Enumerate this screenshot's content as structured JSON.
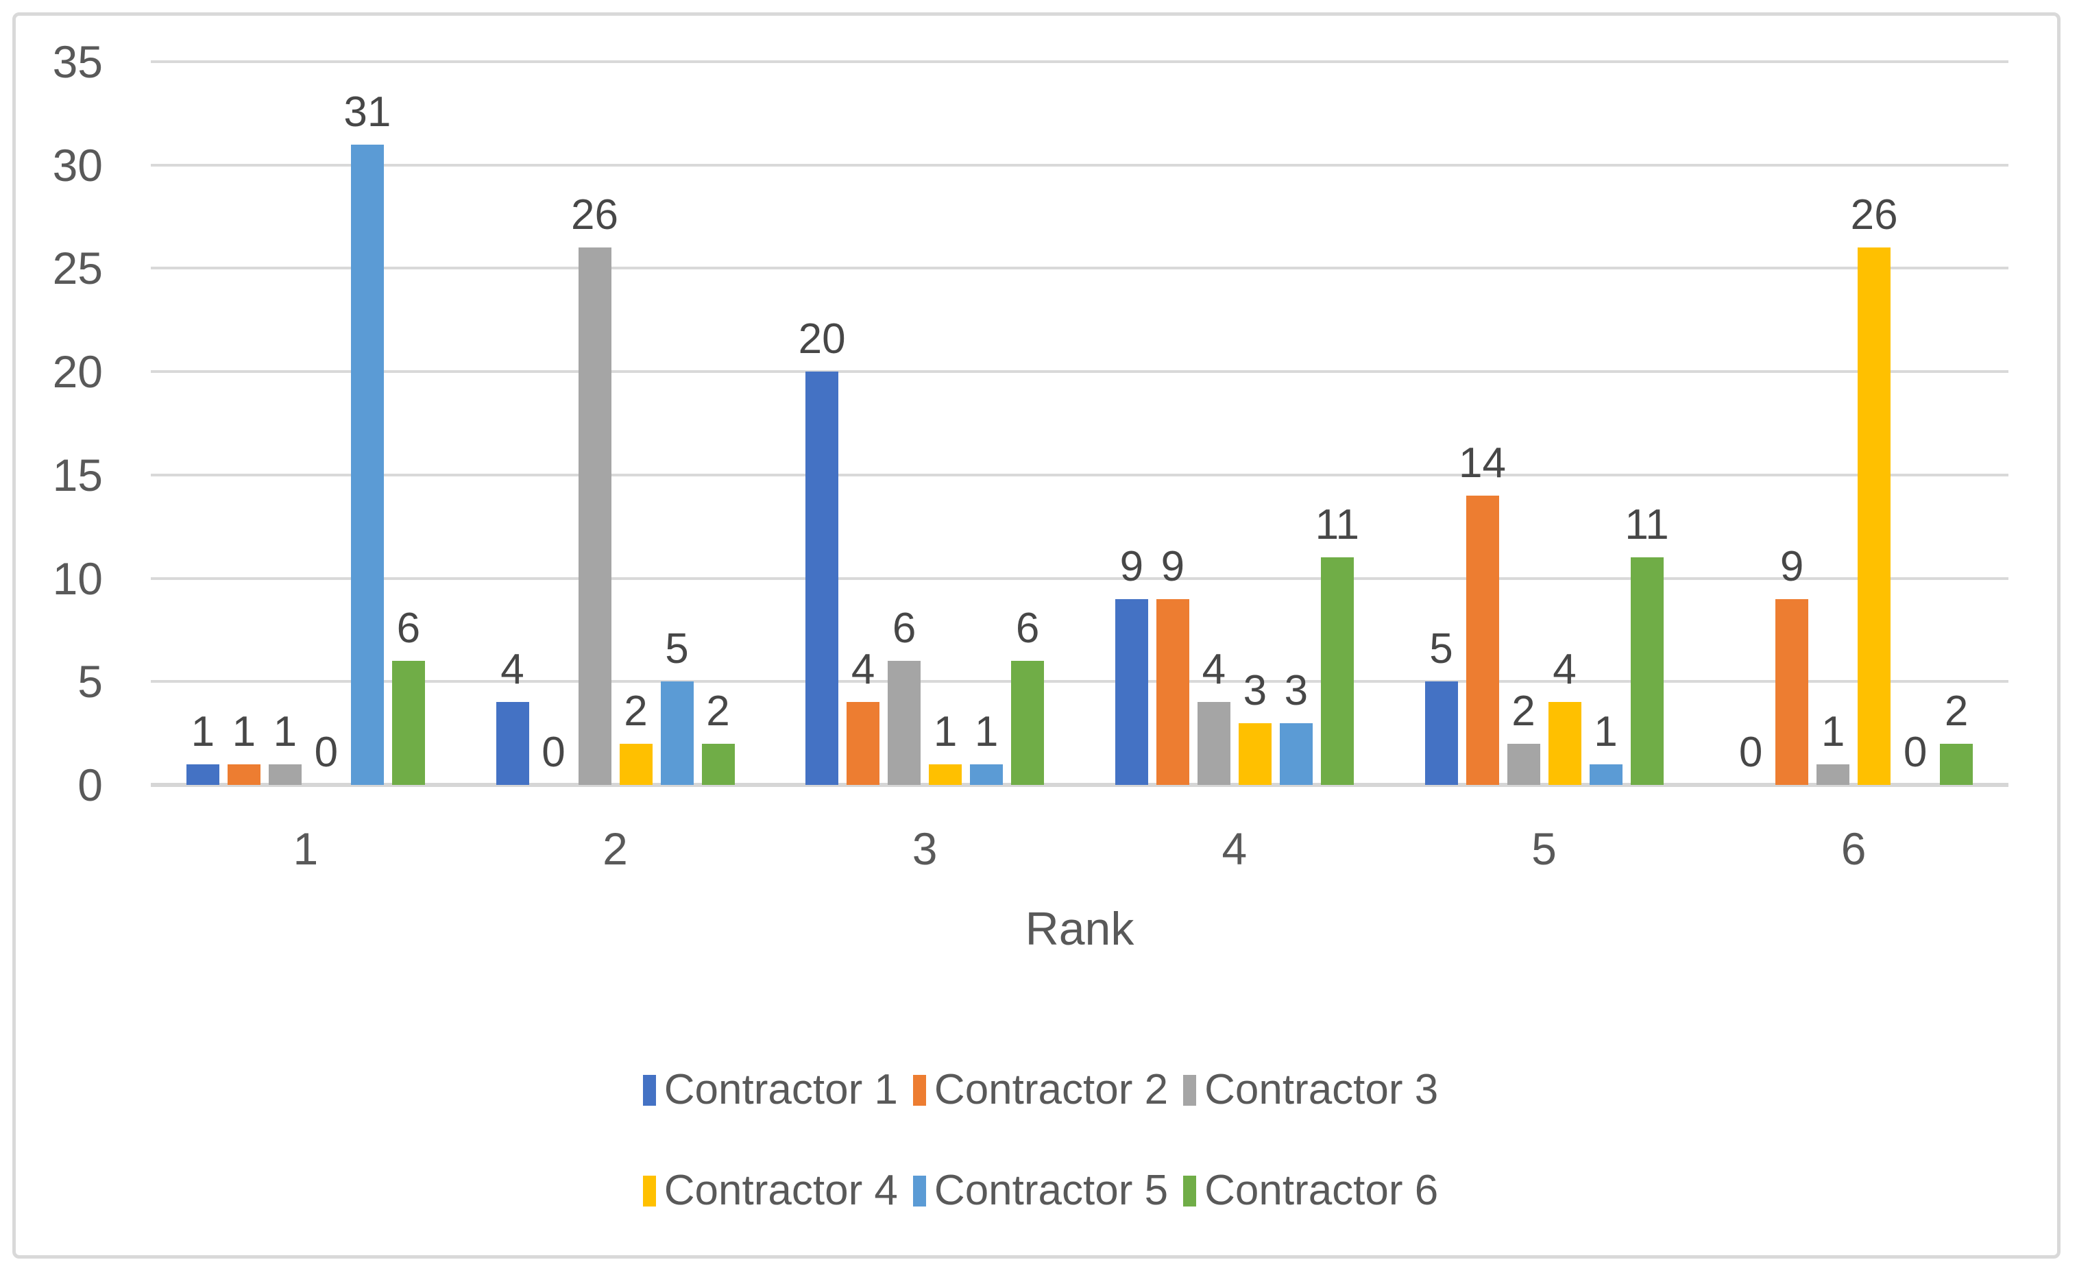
{
  "chart_data": {
    "type": "bar",
    "title": "",
    "xlabel": "Rank",
    "ylabel": "",
    "categories": [
      "1",
      "2",
      "3",
      "4",
      "5",
      "6"
    ],
    "series": [
      {
        "name": "Contractor 1",
        "color": "#4472C4",
        "values": [
          1,
          4,
          20,
          9,
          5,
          0
        ]
      },
      {
        "name": "Contractor 2",
        "color": "#ED7D31",
        "values": [
          1,
          0,
          4,
          9,
          14,
          9
        ]
      },
      {
        "name": "Contractor 3",
        "color": "#A5A5A5",
        "values": [
          1,
          26,
          6,
          4,
          2,
          1
        ]
      },
      {
        "name": "Contractor 4",
        "color": "#FFC000",
        "values": [
          0,
          2,
          1,
          3,
          4,
          26
        ]
      },
      {
        "name": "Contractor 5",
        "color": "#5B9BD5",
        "values": [
          31,
          5,
          1,
          3,
          1,
          0
        ]
      },
      {
        "name": "Contractor 6",
        "color": "#70AD47",
        "values": [
          6,
          2,
          6,
          11,
          11,
          2
        ]
      }
    ],
    "y_axis": {
      "min": 0,
      "max": 35,
      "step": 5,
      "ticks": [
        0,
        5,
        10,
        15,
        20,
        25,
        30,
        35
      ]
    },
    "data_labels": true,
    "grid": true,
    "legend_position": "bottom",
    "legend_columns": 3,
    "colors": {
      "grid": "#D9D9D9",
      "axis_text": "#595959",
      "data_label_text": "#474747"
    }
  }
}
